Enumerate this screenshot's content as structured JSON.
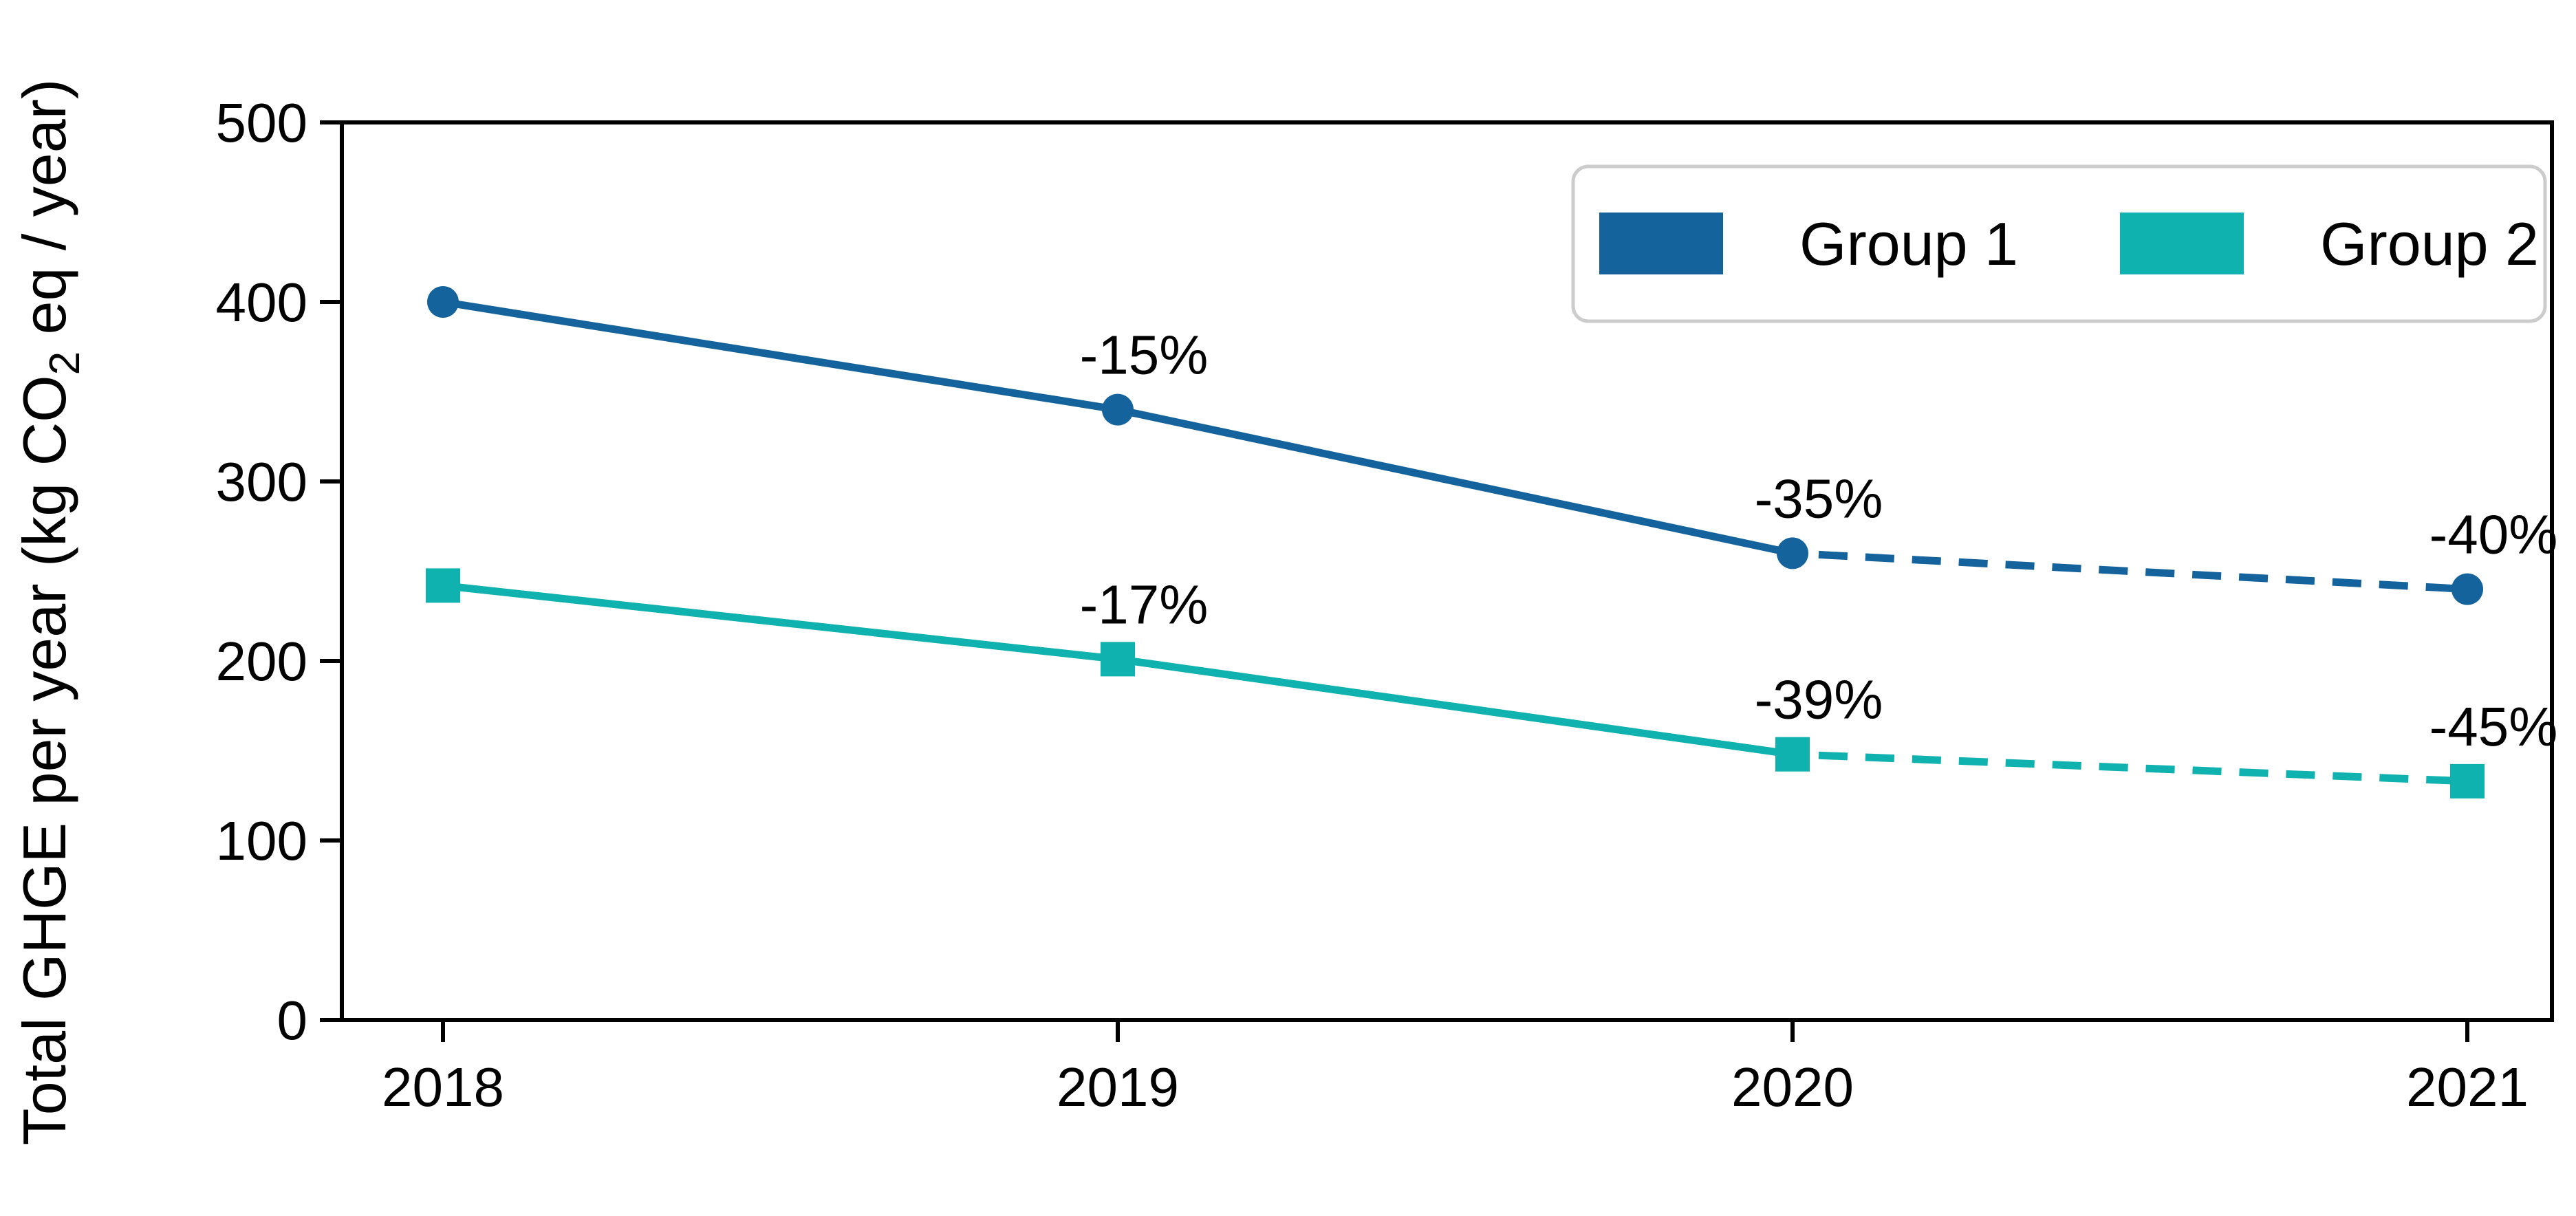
{
  "figure": {
    "background": "#ffffff"
  },
  "chart_data": {
    "type": "line",
    "title": "",
    "xlabel": "",
    "ylabel": {
      "pre": "Total GHGE per year (kg CO",
      "sub": "2",
      "post": " eq / year)"
    },
    "x_categories": [
      "2018",
      "2019",
      "2020",
      "2021"
    ],
    "y_ticks": [
      0,
      100,
      200,
      300,
      400,
      500
    ],
    "y_tick_labels": [
      "0",
      "100",
      "200",
      "300",
      "400",
      "500"
    ],
    "ylim": [
      0,
      500
    ],
    "grid": false,
    "axis_color": "#000000",
    "line_style_note": "solid 2018-2020, dashed 2020-2021",
    "legend": {
      "position": "top-right",
      "border_color": "#cccccc",
      "fill": "#ffffff",
      "entries": [
        {
          "label": "Group 1",
          "color": "#15639c"
        },
        {
          "label": "Group 2",
          "color": "#0fb2ae"
        }
      ]
    },
    "series": [
      {
        "name": "Group 1",
        "color": "#15639c",
        "marker": "circle",
        "values": [
          400,
          340,
          260,
          240
        ],
        "solid_until_index": 2,
        "annotations": [
          {
            "i": 1,
            "text": "-15%"
          },
          {
            "i": 2,
            "text": "-35%"
          },
          {
            "i": 3,
            "text": "-40%"
          }
        ]
      },
      {
        "name": "Group 2",
        "color": "#0fb2ae",
        "marker": "square",
        "values": [
          242,
          201,
          148,
          133
        ],
        "solid_until_index": 2,
        "annotations": [
          {
            "i": 1,
            "text": "-17%"
          },
          {
            "i": 2,
            "text": "-39%"
          },
          {
            "i": 3,
            "text": "-45%"
          }
        ]
      }
    ]
  }
}
